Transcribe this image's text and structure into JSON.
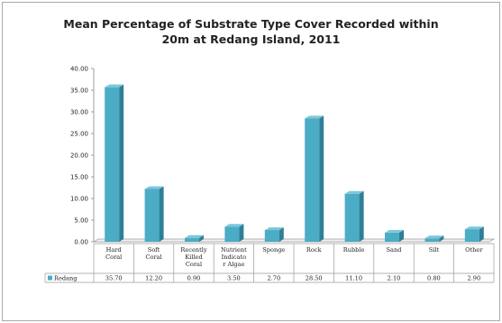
{
  "chart_data": {
    "type": "bar",
    "title_line1": "Mean Percentage of Substrate Type Cover Recorded within",
    "title_line2": "20m at Redang Island, 2011",
    "xlabel": "",
    "ylabel": "",
    "ylim": [
      0,
      40
    ],
    "y_ticks": [
      "0.00",
      "5.00",
      "10.00",
      "15.00",
      "20.00",
      "25.00",
      "30.00",
      "35.00",
      "40.00"
    ],
    "grid": false,
    "legend_position": "bottom-left (data table)",
    "categories": [
      [
        "Hard",
        "Coral"
      ],
      [
        "Soft",
        "Coral"
      ],
      [
        "Recently",
        "Killed",
        "Coral"
      ],
      [
        "Nutrient",
        "Indicato",
        "r Algae"
      ],
      [
        "Sponge"
      ],
      [
        "Rock"
      ],
      [
        "Rubble"
      ],
      [
        "Sand"
      ],
      [
        "Silt"
      ],
      [
        "Other"
      ]
    ],
    "series": [
      {
        "name": "Redang",
        "values": [
          35.7,
          12.2,
          0.9,
          3.5,
          2.7,
          28.5,
          11.1,
          2.1,
          0.8,
          2.9
        ],
        "labels": [
          "35.70",
          "12.20",
          "0.90",
          "3.50",
          "2.70",
          "28.50",
          "11.10",
          "2.10",
          "0.80",
          "2.90"
        ],
        "color": "#4bacc6",
        "side_color": "#2f7f96",
        "top_color": "#7cc7da"
      }
    ]
  }
}
